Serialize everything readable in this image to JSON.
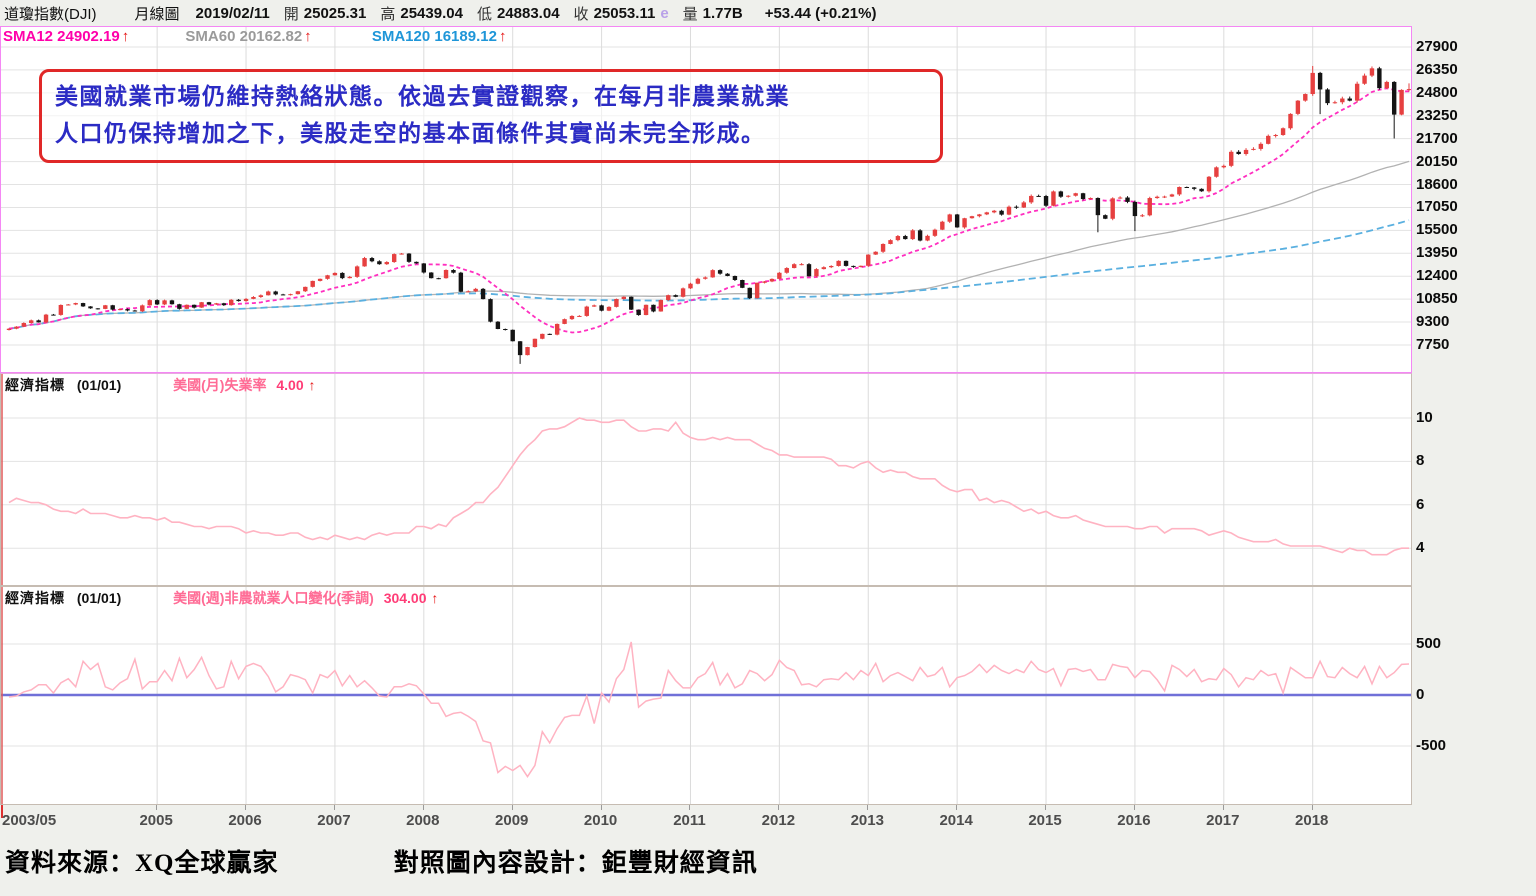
{
  "header": {
    "instrument": "道瓊指數(DJI)",
    "period": "月線圖",
    "date": "2019/02/11",
    "o_label": "開",
    "o": "25025.31",
    "h_label": "高",
    "h": "25439.04",
    "l_label": "低",
    "l": "24883.04",
    "c_label": "收",
    "c": "25053.11",
    "e_flag": "e",
    "v_label": "量",
    "v": "1.77B",
    "change": "+53.44 (+0.21%)"
  },
  "sma": [
    {
      "text": "SMA12 24902.19",
      "arrow": "↑"
    },
    {
      "text": "SMA60 20162.82",
      "arrow": "↑"
    },
    {
      "text": "SMA120 16189.12",
      "arrow": "↑"
    }
  ],
  "annotation": {
    "line1": "美國就業市場仍維持熱絡狀態。依過去實證觀察，在每月非農業就業",
    "line2": "人口仍保持增加之下，美股走空的基本面條件其實尚未完全形成。"
  },
  "sub1": {
    "tag": "經濟指標",
    "date": "(01/01)",
    "name": "美國(月)失業率",
    "value": "4.00",
    "arrow": "↑"
  },
  "sub2": {
    "tag": "經濟指標",
    "date": "(01/01)",
    "name": "美國(週)非農就業人口變化(季調)",
    "value": "304.00",
    "arrow": "↑"
  },
  "footer": {
    "source": "資料來源：XQ全球贏家",
    "design": "對照圖內容設計：鉅豐財經資訊"
  },
  "colors": {
    "up": "#e64040",
    "down": "#141414",
    "sma12": "#ff2fc0",
    "sma60": "#b2b2b2",
    "sma120": "#5ab0e0",
    "indicator": "#ffb3c2",
    "zero_line": "#7070d8",
    "frame_main": "#f487f4",
    "arrow_red": "#e61414",
    "note_text": "#2b2bc4",
    "note_border": "#e02828",
    "grid_h": "#e3e3e3",
    "grid_v": "#dcdcdc"
  },
  "chart_data": [
    {
      "type": "candlestick",
      "title": "道瓊指數(DJI) 月線圖 2003/05 - 2019/02",
      "x_unit": "month",
      "start": "2003/05",
      "end": "2019/02",
      "ylim": [
        5900,
        29300
      ],
      "yticks": [
        27900,
        26350,
        24800,
        23250,
        21700,
        20150,
        18600,
        17050,
        15500,
        13950,
        12400,
        10850,
        9300,
        7750
      ],
      "x_ticks": [
        {
          "label": "2003/05",
          "index": 0
        },
        {
          "label": "2005",
          "index": 20
        },
        {
          "label": "2006",
          "index": 32
        },
        {
          "label": "2007",
          "index": 44
        },
        {
          "label": "2008",
          "index": 56
        },
        {
          "label": "2009",
          "index": 68
        },
        {
          "label": "2010",
          "index": 80
        },
        {
          "label": "2011",
          "index": 92
        },
        {
          "label": "2012",
          "index": 104
        },
        {
          "label": "2013",
          "index": 116
        },
        {
          "label": "2014",
          "index": 128
        },
        {
          "label": "2015",
          "index": 140
        },
        {
          "label": "2016",
          "index": 152
        },
        {
          "label": "2017",
          "index": 164
        },
        {
          "label": "2018",
          "index": 176
        }
      ],
      "sma_windows": [
        12,
        60,
        120
      ],
      "monthly_close": [
        8850,
        8985,
        9234,
        9416,
        9275,
        9801,
        9782,
        10454,
        10488,
        10584,
        10358,
        10226,
        10188,
        10435,
        10140,
        10174,
        10080,
        10027,
        10428,
        10783,
        10490,
        10766,
        10504,
        10193,
        10467,
        10275,
        10641,
        10482,
        10569,
        10440,
        10806,
        10718,
        10865,
        10993,
        11109,
        11367,
        11168,
        11150,
        11186,
        11381,
        11679,
        12081,
        12222,
        12463,
        12622,
        12269,
        12354,
        13063,
        13628,
        13409,
        13212,
        13358,
        13896,
        13930,
        13372,
        13265,
        12650,
        12266,
        12263,
        12820,
        12638,
        11350,
        11378,
        11544,
        10851,
        9325,
        8829,
        8776,
        8001,
        7063,
        7609,
        8168,
        8500,
        8447,
        9172,
        9496,
        9712,
        9713,
        10345,
        10428,
        10067,
        10325,
        10857,
        11009,
        10137,
        9774,
        10466,
        10015,
        10788,
        11118,
        11006,
        11578,
        11892,
        12226,
        12320,
        12811,
        12570,
        12414,
        12143,
        11614,
        10913,
        11955,
        12046,
        12218,
        12633,
        12952,
        13212,
        13214,
        12393,
        12880,
        13009,
        13091,
        13437,
        13096,
        13026,
        13104,
        13861,
        14054,
        14579,
        14840,
        15116,
        14910,
        15500,
        14810,
        15130,
        15546,
        16086,
        16577,
        15699,
        16322,
        16458,
        16581,
        16717,
        16827,
        16563,
        17098,
        17043,
        17391,
        17828,
        17823,
        17165,
        18133,
        17776,
        17841,
        18011,
        17620,
        17690,
        16528,
        16285,
        17664,
        17720,
        17425,
        16466,
        16517,
        17685,
        17774,
        17787,
        17930,
        18432,
        18401,
        18308,
        18142,
        19124,
        19763,
        19864,
        20812,
        20663,
        20941,
        21009,
        21350,
        21891,
        21948,
        22405,
        23377,
        24272,
        24719,
        26149,
        25029,
        24103,
        24163,
        24416,
        24271,
        25415,
        25965,
        26458,
        25116,
        25538,
        23327,
        24999,
        25053
      ],
      "high_overrides": {
        "176": 26617,
        "189": 25439
      },
      "low_overrides": {
        "69": 6470,
        "147": 15370,
        "152": 15450,
        "177": 23360,
        "187": 21713,
        "189": 24883
      }
    },
    {
      "type": "line",
      "name": "美國(月)失業率",
      "latest": 4.0,
      "yticks": [
        10,
        8,
        6,
        4
      ],
      "values": [
        6.1,
        6.3,
        6.2,
        6.1,
        6.1,
        6.0,
        5.8,
        5.7,
        5.7,
        5.6,
        5.8,
        5.6,
        5.6,
        5.6,
        5.5,
        5.4,
        5.4,
        5.5,
        5.4,
        5.4,
        5.3,
        5.4,
        5.2,
        5.2,
        5.1,
        5.0,
        5.0,
        4.9,
        5.0,
        5.0,
        5.0,
        4.9,
        4.7,
        4.8,
        4.7,
        4.7,
        4.6,
        4.6,
        4.7,
        4.7,
        4.5,
        4.4,
        4.5,
        4.4,
        4.6,
        4.5,
        4.4,
        4.5,
        4.4,
        4.6,
        4.7,
        4.6,
        4.7,
        4.7,
        4.7,
        5.0,
        5.0,
        4.9,
        5.1,
        5.0,
        5.4,
        5.6,
        5.8,
        6.1,
        6.1,
        6.5,
        6.8,
        7.3,
        7.8,
        8.3,
        8.7,
        9.0,
        9.4,
        9.5,
        9.5,
        9.6,
        9.8,
        10.0,
        9.9,
        9.9,
        9.8,
        9.8,
        9.9,
        9.9,
        9.6,
        9.4,
        9.4,
        9.5,
        9.5,
        9.4,
        9.8,
        9.3,
        9.1,
        9.0,
        9.0,
        9.1,
        9.0,
        9.1,
        9.0,
        9.0,
        9.0,
        8.8,
        8.6,
        8.5,
        8.3,
        8.3,
        8.2,
        8.2,
        8.2,
        8.2,
        8.2,
        8.1,
        7.8,
        7.8,
        7.7,
        7.9,
        8.0,
        7.7,
        7.5,
        7.6,
        7.5,
        7.5,
        7.3,
        7.2,
        7.2,
        7.2,
        6.9,
        6.7,
        6.6,
        6.7,
        6.7,
        6.2,
        6.3,
        6.1,
        6.2,
        6.1,
        5.9,
        5.7,
        5.8,
        5.6,
        5.7,
        5.5,
        5.4,
        5.4,
        5.5,
        5.3,
        5.2,
        5.1,
        5.0,
        5.0,
        5.0,
        5.0,
        4.9,
        4.9,
        5.0,
        5.0,
        4.7,
        4.9,
        4.9,
        4.9,
        4.9,
        4.8,
        4.6,
        4.7,
        4.8,
        4.7,
        4.5,
        4.4,
        4.3,
        4.3,
        4.3,
        4.4,
        4.2,
        4.1,
        4.1,
        4.1,
        4.1,
        4.1,
        4.0,
        3.9,
        3.8,
        4.0,
        3.9,
        3.9,
        3.7,
        3.7,
        3.7,
        3.9,
        4.0,
        4.0
      ]
    },
    {
      "type": "line",
      "name": "美國(週)非農就業人口變化(季調)",
      "latest": 304.0,
      "yticks": [
        500,
        0,
        -500
      ],
      "zero_line": true,
      "values": [
        -20,
        -10,
        30,
        50,
        100,
        100,
        20,
        120,
        160,
        80,
        330,
        250,
        310,
        80,
        50,
        120,
        160,
        350,
        60,
        130,
        130,
        240,
        140,
        360,
        170,
        250,
        370,
        190,
        60,
        80,
        330,
        160,
        280,
        310,
        280,
        180,
        30,
        80,
        200,
        180,
        150,
        20,
        200,
        170,
        240,
        90,
        190,
        80,
        140,
        70,
        -10,
        -20,
        80,
        80,
        110,
        90,
        10,
        -80,
        -80,
        -210,
        -180,
        -170,
        -210,
        -260,
        -450,
        -470,
        -760,
        -700,
        -740,
        -690,
        -800,
        -690,
        -360,
        -470,
        -330,
        -220,
        -200,
        -200,
        -10,
        -280,
        20,
        -70,
        160,
        250,
        520,
        -120,
        -60,
        -40,
        -30,
        240,
        140,
        70,
        70,
        170,
        210,
        320,
        100,
        210,
        70,
        110,
        240,
        210,
        140,
        200,
        340,
        270,
        240,
        100,
        110,
        80,
        150,
        160,
        150,
        220,
        150,
        240,
        190,
        310,
        130,
        190,
        220,
        180,
        140,
        270,
        180,
        200,
        270,
        80,
        170,
        190,
        230,
        300,
        220,
        290,
        240,
        210,
        250,
        220,
        330,
        250,
        220,
        260,
        90,
        250,
        260,
        230,
        250,
        150,
        150,
        300,
        280,
        270,
        170,
        240,
        230,
        150,
        40,
        290,
        250,
        180,
        250,
        130,
        160,
        150,
        260,
        200,
        80,
        170,
        150,
        240,
        190,
        210,
        20,
        270,
        220,
        170,
        170,
        330,
        180,
        170,
        270,
        210,
        170,
        280,
        110,
        280,
        170,
        220,
        300,
        304
      ]
    }
  ]
}
